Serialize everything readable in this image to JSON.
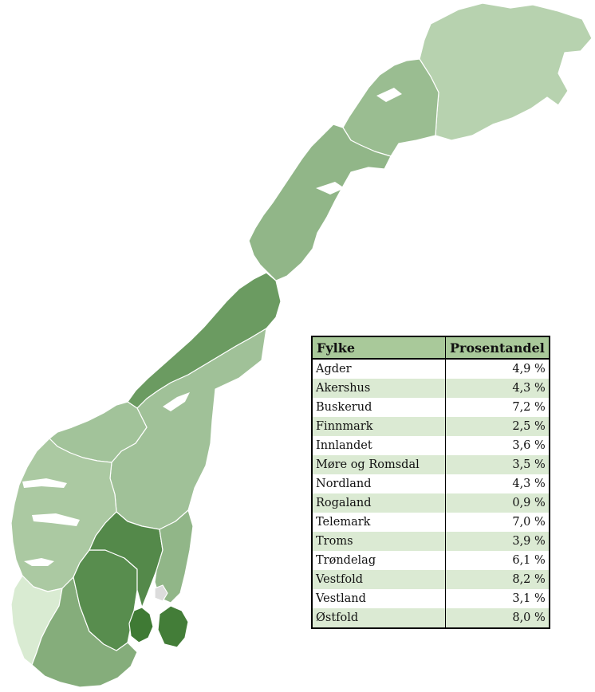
{
  "table": {
    "headers": [
      "Fylke",
      "Prosentandel"
    ],
    "rows": [
      {
        "fylke": "Agder",
        "share": "4,9 %",
        "value": 4.9
      },
      {
        "fylke": "Akershus",
        "share": "4,3 %",
        "value": 4.3
      },
      {
        "fylke": "Buskerud",
        "share": "7,2 %",
        "value": 7.2
      },
      {
        "fylke": "Finnmark",
        "share": "2,5 %",
        "value": 2.5
      },
      {
        "fylke": "Innlandet",
        "share": "3,6 %",
        "value": 3.6
      },
      {
        "fylke": "Møre og Romsdal",
        "share": "3,5 %",
        "value": 3.5
      },
      {
        "fylke": "Nordland",
        "share": "4,3 %",
        "value": 4.3
      },
      {
        "fylke": "Rogaland",
        "share": "0,9 %",
        "value": 0.9
      },
      {
        "fylke": "Telemark",
        "share": "7,0 %",
        "value": 7.0
      },
      {
        "fylke": "Troms",
        "share": "3,9 %",
        "value": 3.9
      },
      {
        "fylke": "Trøndelag",
        "share": "6,1 %",
        "value": 6.1
      },
      {
        "fylke": "Vestfold",
        "share": "8,2 %",
        "value": 8.2
      },
      {
        "fylke": "Vestland",
        "share": "3,1 %",
        "value": 3.1
      },
      {
        "fylke": "Østfold",
        "share": "8,0 %",
        "value": 8.0
      }
    ]
  },
  "colors": {
    "scale_low": "#d9ebd2",
    "scale_high": "#3f7a34",
    "oslo": "#dcdcdc",
    "header_bg": "#a9c99a",
    "row_alt_bg": "#dbead3"
  }
}
